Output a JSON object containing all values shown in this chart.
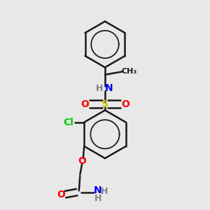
{
  "bg_color": "#e8e8e8",
  "bond_color": "#1a1a1a",
  "bond_width": 1.8,
  "colors": {
    "N": "#0000ff",
    "O": "#ff0000",
    "S": "#cccc00",
    "Cl": "#00cc00",
    "C": "#1a1a1a",
    "H": "#808080"
  },
  "font_size": 10
}
